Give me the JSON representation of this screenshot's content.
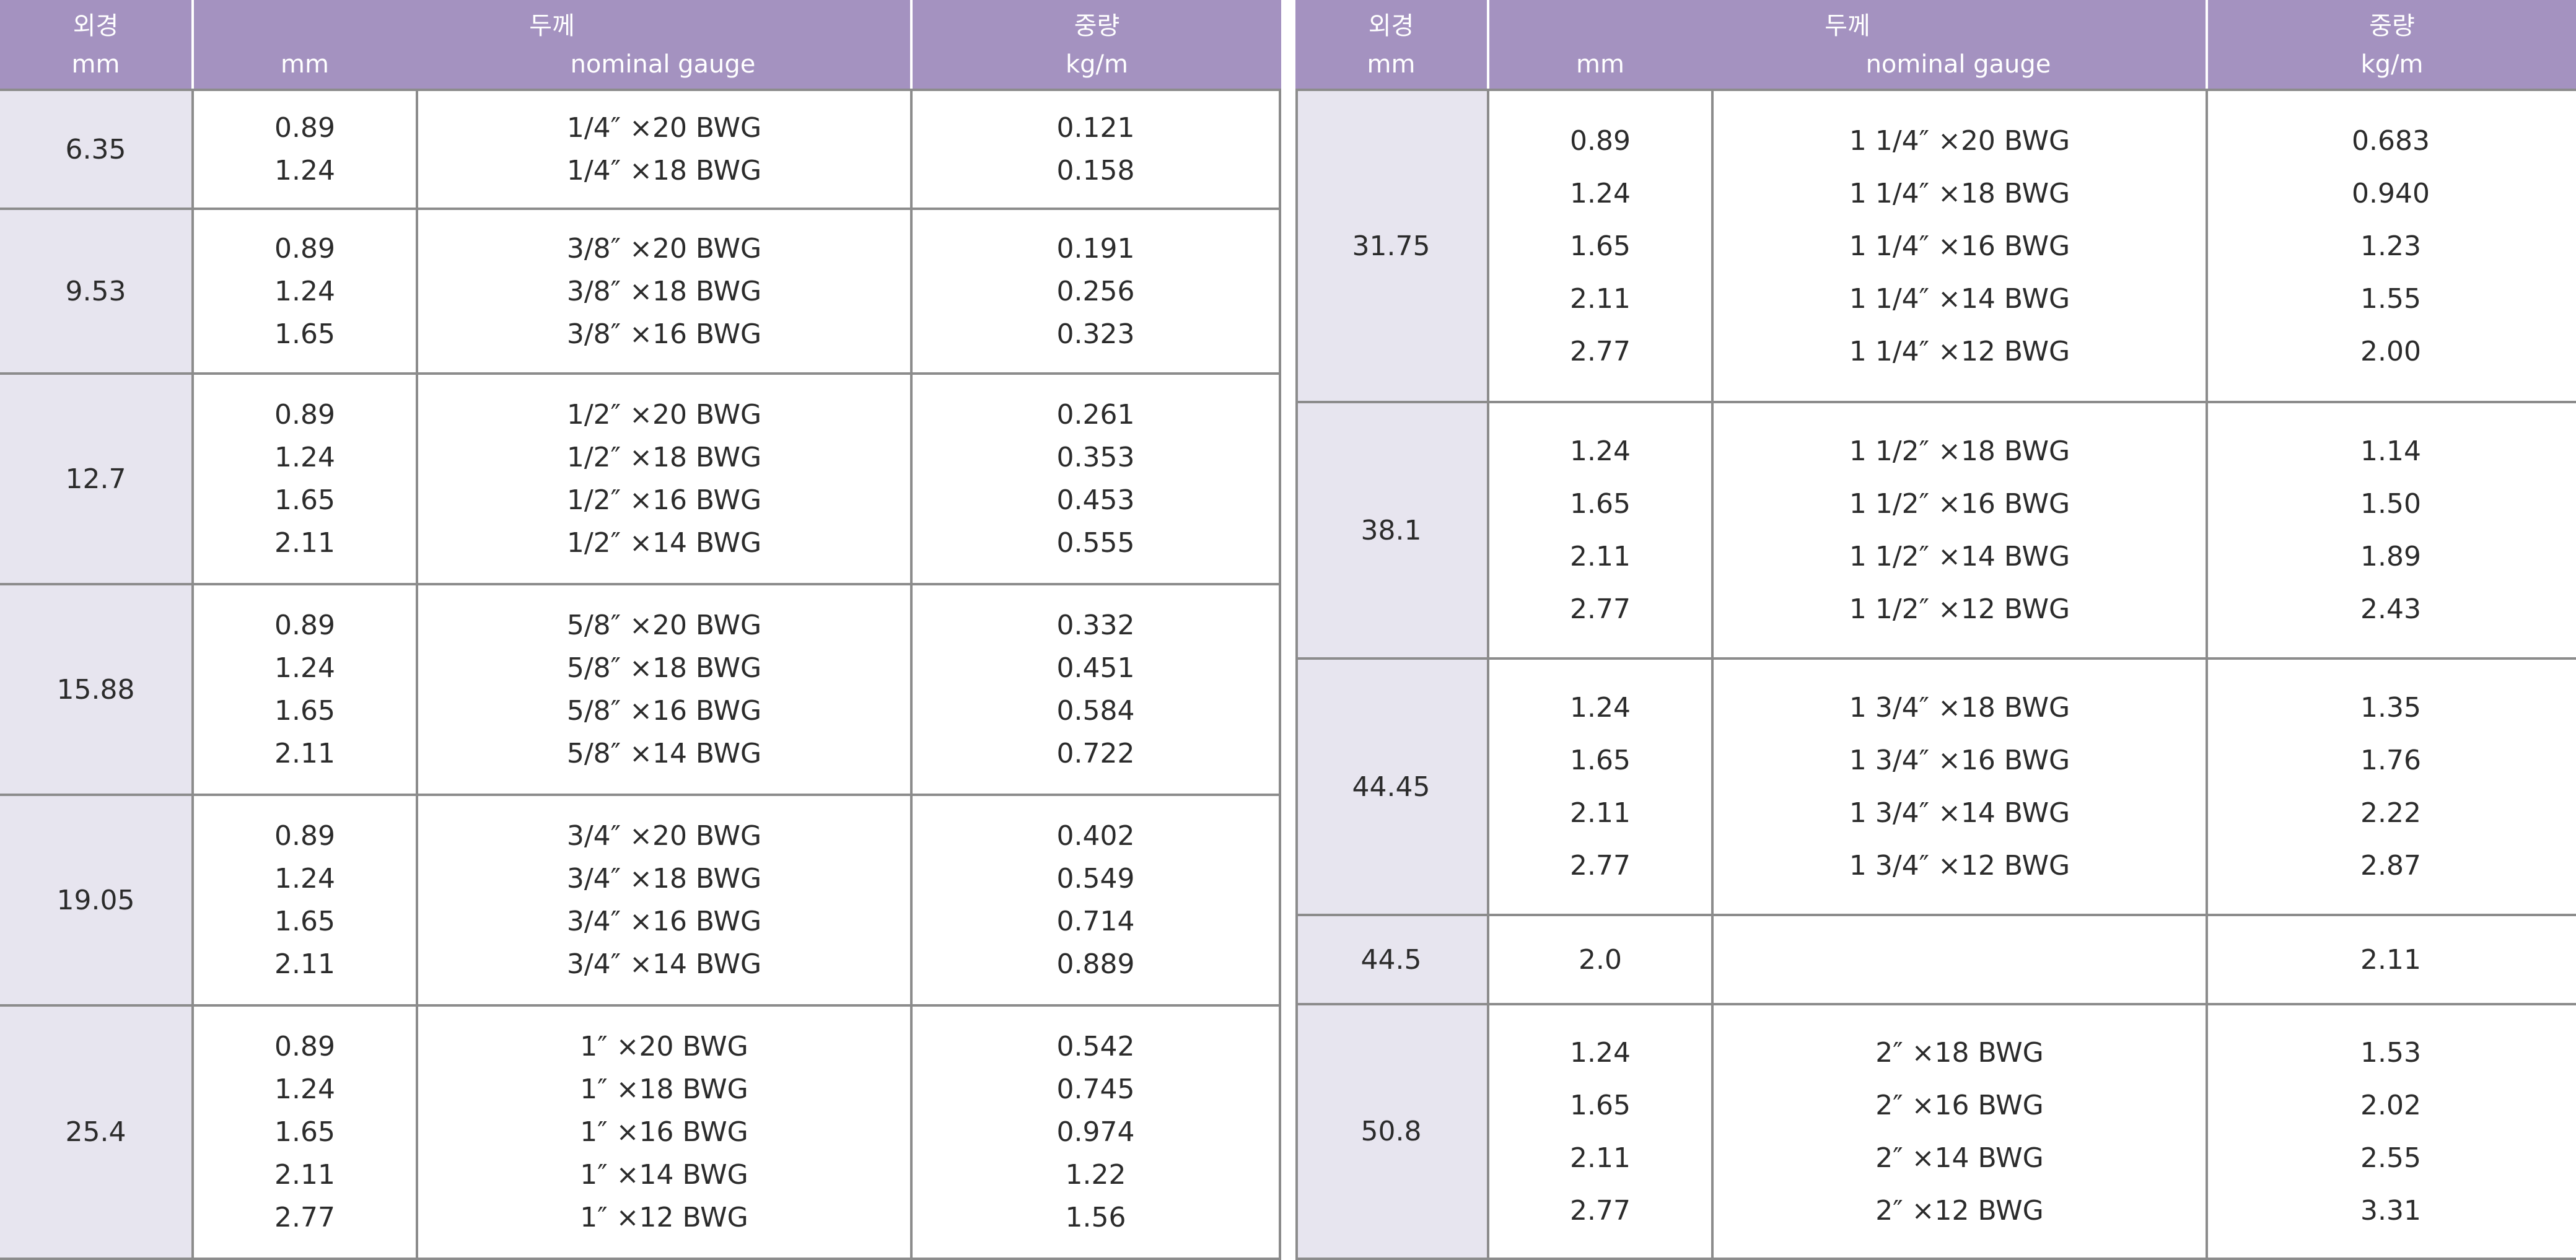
{
  "header": {
    "od_label": "외경",
    "od_unit": "mm",
    "thickness_label": "두께",
    "thickness_mm": "mm",
    "thickness_gauge": "nominal gauge",
    "weight_label": "중량",
    "weight_unit": "kg/m"
  },
  "left_table": [
    {
      "od": "6.35",
      "rows": [
        {
          "mm": "0.89",
          "gauge": "1/4″ ×20 BWG",
          "kg": "0.121"
        },
        {
          "mm": "1.24",
          "gauge": "1/4″ ×18 BWG",
          "kg": "0.158"
        }
      ]
    },
    {
      "od": "9.53",
      "rows": [
        {
          "mm": "0.89",
          "gauge": "3/8″ ×20 BWG",
          "kg": "0.191"
        },
        {
          "mm": "1.24",
          "gauge": "3/8″ ×18 BWG",
          "kg": "0.256"
        },
        {
          "mm": "1.65",
          "gauge": "3/8″ ×16 BWG",
          "kg": "0.323"
        }
      ]
    },
    {
      "od": "12.7",
      "rows": [
        {
          "mm": "0.89",
          "gauge": "1/2″ ×20 BWG",
          "kg": "0.261"
        },
        {
          "mm": "1.24",
          "gauge": "1/2″ ×18 BWG",
          "kg": "0.353"
        },
        {
          "mm": "1.65",
          "gauge": "1/2″ ×16 BWG",
          "kg": "0.453"
        },
        {
          "mm": "2.11",
          "gauge": "1/2″ ×14 BWG",
          "kg": "0.555"
        }
      ]
    },
    {
      "od": "15.88",
      "rows": [
        {
          "mm": "0.89",
          "gauge": "5/8″ ×20 BWG",
          "kg": "0.332"
        },
        {
          "mm": "1.24",
          "gauge": "5/8″ ×18 BWG",
          "kg": "0.451"
        },
        {
          "mm": "1.65",
          "gauge": "5/8″ ×16 BWG",
          "kg": "0.584"
        },
        {
          "mm": "2.11",
          "gauge": "5/8″ ×14 BWG",
          "kg": "0.722"
        }
      ]
    },
    {
      "od": "19.05",
      "rows": [
        {
          "mm": "0.89",
          "gauge": "3/4″ ×20 BWG",
          "kg": "0.402"
        },
        {
          "mm": "1.24",
          "gauge": "3/4″ ×18 BWG",
          "kg": "0.549"
        },
        {
          "mm": "1.65",
          "gauge": "3/4″ ×16 BWG",
          "kg": "0.714"
        },
        {
          "mm": "2.11",
          "gauge": "3/4″ ×14 BWG",
          "kg": "0.889"
        }
      ]
    },
    {
      "od": "25.4",
      "rows": [
        {
          "mm": "0.89",
          "gauge": "1″ ×20 BWG",
          "kg": "0.542"
        },
        {
          "mm": "1.24",
          "gauge": "1″ ×18 BWG",
          "kg": "0.745"
        },
        {
          "mm": "1.65",
          "gauge": "1″ ×16 BWG",
          "kg": "0.974"
        },
        {
          "mm": "2.11",
          "gauge": "1″ ×14 BWG",
          "kg": "1.22"
        },
        {
          "mm": "2.77",
          "gauge": "1″ ×12 BWG",
          "kg": "1.56"
        }
      ]
    }
  ],
  "right_table": [
    {
      "od": "31.75",
      "rows": [
        {
          "mm": "0.89",
          "gauge": "1 1/4″ ×20 BWG",
          "kg": "0.683"
        },
        {
          "mm": "1.24",
          "gauge": "1 1/4″ ×18 BWG",
          "kg": "0.940"
        },
        {
          "mm": "1.65",
          "gauge": "1 1/4″ ×16 BWG",
          "kg": "1.23"
        },
        {
          "mm": "2.11",
          "gauge": "1 1/4″ ×14 BWG",
          "kg": "1.55"
        },
        {
          "mm": "2.77",
          "gauge": "1 1/4″ ×12 BWG",
          "kg": "2.00"
        }
      ]
    },
    {
      "od": "38.1",
      "rows": [
        {
          "mm": "1.24",
          "gauge": "1 1/2″ ×18 BWG",
          "kg": "1.14"
        },
        {
          "mm": "1.65",
          "gauge": "1 1/2″ ×16 BWG",
          "kg": "1.50"
        },
        {
          "mm": "2.11",
          "gauge": "1 1/2″ ×14 BWG",
          "kg": "1.89"
        },
        {
          "mm": "2.77",
          "gauge": "1 1/2″ ×12 BWG",
          "kg": "2.43"
        }
      ]
    },
    {
      "od": "44.45",
      "rows": [
        {
          "mm": "1.24",
          "gauge": "1 3/4″ ×18 BWG",
          "kg": "1.35"
        },
        {
          "mm": "1.65",
          "gauge": "1 3/4″ ×16 BWG",
          "kg": "1.76"
        },
        {
          "mm": "2.11",
          "gauge": "1 3/4″ ×14 BWG",
          "kg": "2.22"
        },
        {
          "mm": "2.77",
          "gauge": "1 3/4″ ×12 BWG",
          "kg": "2.87"
        }
      ]
    },
    {
      "od": "44.5",
      "rows": [
        {
          "mm": "2.0",
          "gauge": "",
          "kg": "2.11"
        }
      ]
    },
    {
      "od": "50.8",
      "rows": [
        {
          "mm": "1.24",
          "gauge": "2″ ×18 BWG",
          "kg": "1.53"
        },
        {
          "mm": "1.65",
          "gauge": "2″ ×16 BWG",
          "kg": "2.02"
        },
        {
          "mm": "2.11",
          "gauge": "2″ ×14 BWG",
          "kg": "2.55"
        },
        {
          "mm": "2.77",
          "gauge": "2″ ×12 BWG",
          "kg": "3.31"
        }
      ]
    }
  ]
}
